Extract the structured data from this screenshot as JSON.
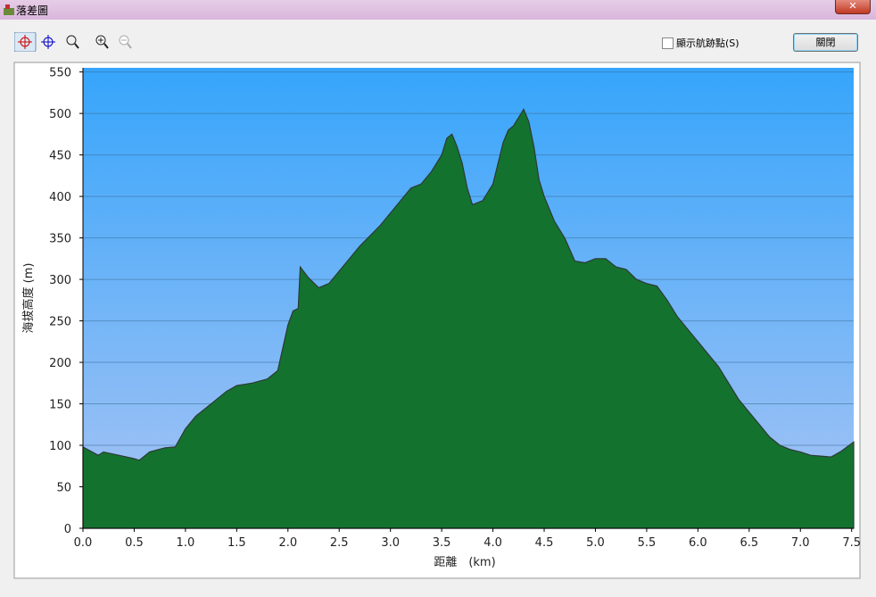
{
  "window": {
    "title": "落差圖",
    "checkbox_label": "顯示航跡點(S)",
    "button": "關閉"
  },
  "chart_data": {
    "type": "area",
    "ylabel": "海拔高度 (m)",
    "xlabel": "距離　(km)",
    "xlim": [
      0,
      7.52
    ],
    "ylim": [
      0,
      555
    ],
    "xticks": [
      {
        "value": 0,
        "label": "0.0"
      },
      0.5,
      {
        "value": 1,
        "label": "1.0"
      },
      1.5,
      {
        "value": 2,
        "label": "2.0"
      },
      2.5,
      {
        "value": 3,
        "label": "3.0"
      },
      3.5,
      {
        "value": 4,
        "label": "4.0"
      },
      4.5,
      {
        "value": 5,
        "label": "5.0"
      },
      5.5,
      {
        "value": 6,
        "label": "6.0"
      },
      6.5,
      {
        "value": 7,
        "label": "7.0"
      },
      7.5
    ],
    "yticks": [
      0,
      50,
      100,
      150,
      200,
      250,
      300,
      350,
      400,
      450,
      500,
      550
    ],
    "grid": true,
    "color": "#1f9a45",
    "x": [
      0,
      0.15,
      0.2,
      0.35,
      0.5,
      0.55,
      0.65,
      0.8,
      0.9,
      1.0,
      1.1,
      1.25,
      1.4,
      1.5,
      1.65,
      1.8,
      1.9,
      2.0,
      2.05,
      2.1,
      2.12,
      2.2,
      2.3,
      2.4,
      2.5,
      2.6,
      2.7,
      2.9,
      3.1,
      3.2,
      3.3,
      3.4,
      3.5,
      3.55,
      3.6,
      3.65,
      3.7,
      3.75,
      3.8,
      3.9,
      4.0,
      4.05,
      4.1,
      4.15,
      4.2,
      4.25,
      4.3,
      4.35,
      4.4,
      4.45,
      4.5,
      4.6,
      4.7,
      4.8,
      4.9,
      5.0,
      5.1,
      5.2,
      5.3,
      5.4,
      5.5,
      5.6,
      5.7,
      5.8,
      5.9,
      6.0,
      6.1,
      6.2,
      6.3,
      6.4,
      6.5,
      6.6,
      6.7,
      6.8,
      6.9,
      7.0,
      7.1,
      7.2,
      7.3,
      7.4,
      7.52
    ],
    "values": [
      98,
      88,
      92,
      88,
      84,
      82,
      92,
      97,
      98,
      120,
      135,
      150,
      165,
      172,
      175,
      180,
      190,
      245,
      262,
      265,
      315,
      302,
      290,
      295,
      310,
      325,
      340,
      365,
      395,
      410,
      415,
      430,
      450,
      470,
      475,
      460,
      440,
      410,
      390,
      395,
      415,
      440,
      465,
      480,
      485,
      495,
      505,
      490,
      460,
      420,
      400,
      370,
      350,
      322,
      320,
      325,
      325,
      315,
      312,
      300,
      295,
      292,
      275,
      255,
      240,
      225,
      210,
      195,
      175,
      155,
      140,
      125,
      110,
      100,
      95,
      92,
      88,
      87,
      86,
      93,
      104
    ]
  }
}
